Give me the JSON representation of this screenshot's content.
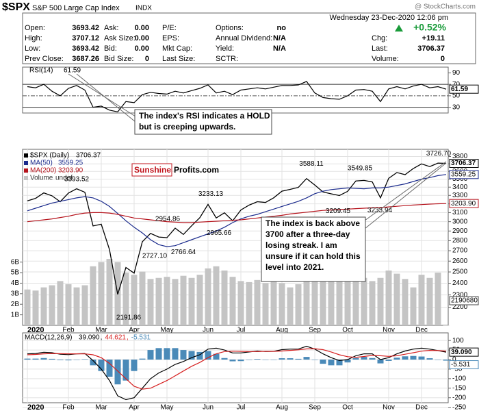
{
  "header": {
    "symbol": "$SPX",
    "name": "S&P 500 Large Cap Index",
    "exchange": "INDX",
    "source": "@ StockCharts.com",
    "datetime": "Wednesday  23-Dec-2020 12:06 pm",
    "change_pct": "+0.52%"
  },
  "quote": [
    [
      {
        "label": "Open:",
        "value": "3693.42"
      },
      {
        "label": "High:",
        "value": "3707.12"
      },
      {
        "label": "Low:",
        "value": "3693.42"
      },
      {
        "label": "Prev Close:",
        "value": "3687.26"
      }
    ],
    [
      {
        "label": "Ask:",
        "value": "0.00"
      },
      {
        "label": "Ask Size:",
        "value": "0.00"
      },
      {
        "label": "Bid:",
        "value": "0.00"
      },
      {
        "label": "Bid Size:",
        "value": "0"
      }
    ],
    [
      {
        "label": "P/E:"
      },
      {
        "label": "EPS:"
      },
      {
        "label": "Mkt Cap:"
      },
      {
        "label": "Last Size:"
      }
    ],
    [
      {
        "label": "Options:",
        "value": "no"
      },
      {
        "label": "Annual Dividend:",
        "value": "N/A"
      },
      {
        "label": "Yield:",
        "value": "N/A"
      },
      {
        "label": "SCTR:"
      }
    ],
    [
      {
        "label": "Chg:",
        "value": "+19.11"
      },
      {
        "label": "Last:",
        "value": "3706.37"
      },
      {
        "label": "Volume:",
        "value": "0"
      }
    ]
  ],
  "logo": {
    "brand": "Sunshine",
    "site": "Profits.com"
  },
  "callouts": [
    {
      "lines": [
        "The index's RSI indicates a HOLD",
        "but is creeping upwards."
      ]
    },
    {
      "lines": [
        "The index is back above",
        "3700 after a three-day",
        "losing streak. I am",
        "unsure if it can hold this",
        "level into 2021."
      ]
    }
  ],
  "chart_data": [
    {
      "type": "line",
      "series": [
        {
          "name": "RSI(14)",
          "last": "61.59",
          "color": "#000000",
          "values": [
            66,
            64,
            70,
            58,
            50,
            63,
            68,
            60,
            30,
            32,
            25,
            22,
            40,
            38,
            52,
            56,
            54,
            53,
            58,
            55,
            59,
            63,
            69,
            55,
            58,
            52,
            60,
            62,
            64,
            62,
            65,
            68,
            68,
            69,
            75,
            55,
            47,
            45,
            44,
            50,
            60,
            61,
            58,
            40,
            62,
            66,
            62,
            67,
            70,
            64,
            66,
            61.59
          ]
        }
      ],
      "ylim": [
        20,
        100
      ],
      "yticks": [
        30,
        50,
        70,
        90
      ],
      "levels": [
        30,
        70
      ],
      "midline": 50
    },
    {
      "type": "line",
      "log": true,
      "grid": true,
      "categories": [
        "2020",
        null,
        null,
        null,
        null,
        "Feb",
        null,
        null,
        null,
        "Mar",
        null,
        null,
        null,
        "Apr",
        null,
        null,
        null,
        "May",
        null,
        null,
        null,
        null,
        "Jun",
        null,
        null,
        null,
        "Jul",
        null,
        null,
        null,
        null,
        "Aug",
        null,
        null,
        null,
        "Sep",
        null,
        null,
        null,
        "Oct",
        null,
        null,
        null,
        null,
        "Nov",
        null,
        null,
        null,
        "Dec",
        null,
        null,
        null
      ],
      "series": [
        {
          "name": "$SPX (Daily)",
          "last": "3706.37",
          "color": "#000000",
          "values": [
            3235,
            3265,
            3330,
            3295,
            3225,
            3328,
            3380,
            3338,
            2954,
            2972,
            2711,
            2305,
            2541,
            2489,
            2790,
            2875,
            2837,
            2831,
            2930,
            2864,
            2955,
            3044,
            3194,
            3041,
            3098,
            3009,
            3130,
            3185,
            3225,
            3216,
            3271,
            3351,
            3373,
            3397,
            3508,
            3427,
            3341,
            3319,
            3298,
            3348,
            3477,
            3484,
            3465,
            3270,
            3510,
            3585,
            3558,
            3638,
            3699,
            3663,
            3709,
            3706.37
          ]
        },
        {
          "name": "MA(50)",
          "last": "3559.25",
          "color": "#1a2a8c",
          "values": [
            3120,
            3150,
            3180,
            3210,
            3230,
            3250,
            3270,
            3285,
            3270,
            3230,
            3170,
            3090,
            3010,
            2940,
            2880,
            2810,
            2760,
            2740,
            2750,
            2780,
            2810,
            2840,
            2870,
            2900,
            2940,
            2990,
            3030,
            3060,
            3080,
            3110,
            3140,
            3170,
            3200,
            3230,
            3270,
            3320,
            3350,
            3370,
            3380,
            3390,
            3385,
            3380,
            3390,
            3390,
            3400,
            3420,
            3440,
            3470,
            3500,
            3520,
            3545,
            3559.25
          ]
        },
        {
          "name": "MA(200)",
          "last": "3203.90",
          "color": "#b5121b",
          "values": [
            3000,
            3010,
            3020,
            3030,
            3045,
            3060,
            3080,
            3095,
            3100,
            3100,
            3095,
            3080,
            3060,
            3040,
            3030,
            3020,
            3010,
            3000,
            2995,
            2990,
            2990,
            2995,
            3000,
            3005,
            3010,
            3015,
            3020,
            3030,
            3040,
            3050,
            3060,
            3070,
            3085,
            3095,
            3105,
            3115,
            3125,
            3130,
            3135,
            3140,
            3145,
            3150,
            3155,
            3158,
            3165,
            3172,
            3180,
            3186,
            3192,
            3197,
            3201,
            3203.9
          ]
        },
        {
          "name": "Volume",
          "last": "undef",
          "current": 2190680,
          "type": "bar",
          "axis": "y2",
          "color": "#c4c4c4",
          "values": [
            3400000000,
            3300000000,
            3600000000,
            3800000000,
            4200000000,
            3900000000,
            3600000000,
            3800000000,
            5600000000,
            6000000000,
            6300000000,
            6000000000,
            5000000000,
            4800000000,
            5100000000,
            4400000000,
            4500000000,
            4600000000,
            4400000000,
            4700000000,
            4500000000,
            4800000000,
            5400000000,
            5600000000,
            5200000000,
            4600000000,
            4200000000,
            4100000000,
            4300000000,
            4000000000,
            4300000000,
            4000000000,
            3600000000,
            3900000000,
            4200000000,
            5000000000,
            4700000000,
            4800000000,
            4200000000,
            4300000000,
            4400000000,
            4500000000,
            4200000000,
            4500000000,
            5200000000,
            4900000000,
            4400000000,
            3600000000,
            4800000000,
            4500000000,
            5000000000,
            2190680
          ]
        }
      ],
      "ylim": [
        2060,
        3900
      ],
      "yticks": [
        2200,
        2300,
        2400,
        2500,
        2600,
        2700,
        2800,
        2900,
        3000,
        3100,
        3200,
        3300,
        3400,
        3500,
        3600,
        3700,
        3800
      ],
      "y2lim": [
        0,
        16700000000
      ],
      "y2ticks": [
        {
          "value": 1000000000,
          "label": "1B"
        },
        {
          "value": 2000000000,
          "label": "2B"
        },
        {
          "value": 3000000000,
          "label": "3B"
        },
        {
          "value": 4000000000,
          "label": "4B"
        },
        {
          "value": 5000000000,
          "label": "5B"
        },
        {
          "value": 6000000000,
          "label": "6B"
        }
      ],
      "price_labels": [
        3393.52,
        3233.13,
        2954.86,
        2965.66,
        2766.64,
        {
          "value": 2727.1,
          "label": "2727.10"
        },
        2191.86,
        3588.11,
        3549.85,
        3209.45,
        3233.94,
        {
          "value": 3726.7,
          "label": "3726.70"
        }
      ]
    },
    {
      "type": "line",
      "grid": true,
      "title": "MACD(12,26,9)",
      "separator": ",",
      "categories": [
        "2020",
        null,
        null,
        null,
        null,
        "Feb",
        null,
        null,
        null,
        "Mar",
        null,
        null,
        null,
        "Apr",
        null,
        null,
        null,
        "May",
        null,
        null,
        null,
        null,
        "Jun",
        null,
        null,
        null,
        "Jul",
        null,
        null,
        null,
        null,
        "Aug",
        null,
        null,
        null,
        "Sep",
        null,
        null,
        null,
        "Oct",
        null,
        null,
        null,
        null,
        "Nov",
        null,
        null,
        null,
        "Dec",
        null,
        null,
        null
      ],
      "series": [
        {
          "last": "39.090",
          "color": "#000000",
          "values": [
            30,
            32,
            38,
            36,
            28,
            26,
            30,
            32,
            -5,
            -50,
            -110,
            -190,
            -210,
            -200,
            -150,
            -100,
            -70,
            -50,
            -25,
            -10,
            10,
            25,
            55,
            60,
            50,
            35,
            35,
            40,
            45,
            42,
            43,
            52,
            55,
            55,
            70,
            55,
            30,
            10,
            -5,
            0,
            20,
            30,
            30,
            0,
            10,
            30,
            45,
            55,
            60,
            55,
            47,
            39.09
          ]
        },
        {
          "last": "44.621",
          "color": "#d62020",
          "values": [
            25,
            27,
            30,
            32,
            31,
            30,
            30,
            30,
            25,
            10,
            -20,
            -60,
            -100,
            -140,
            -155,
            -150,
            -130,
            -110,
            -85,
            -60,
            -35,
            -15,
            10,
            30,
            42,
            44,
            43,
            42,
            42,
            43,
            43,
            45,
            48,
            51,
            56,
            57,
            52,
            40,
            25,
            15,
            12,
            16,
            22,
            20,
            17,
            20,
            28,
            36,
            44,
            48,
            47,
            44.621
          ]
        },
        {
          "last": "-5.531",
          "type": "bar",
          "color": "#4a8ab8",
          "values": [
            5,
            5,
            8,
            4,
            -3,
            -4,
            0,
            2,
            -30,
            -60,
            -90,
            -130,
            -110,
            -60,
            5,
            50,
            60,
            60,
            60,
            50,
            45,
            40,
            45,
            30,
            8,
            -9,
            -8,
            -2,
            3,
            -1,
            0,
            7,
            7,
            4,
            14,
            -2,
            -22,
            -30,
            -30,
            -15,
            8,
            14,
            8,
            -20,
            -7,
            10,
            17,
            19,
            16,
            7,
            0,
            -5.531
          ]
        }
      ],
      "ylim": [
        -280,
        140
      ],
      "yticks": [
        -250,
        -200,
        -150,
        -100,
        -50,
        0,
        50,
        100
      ]
    }
  ]
}
